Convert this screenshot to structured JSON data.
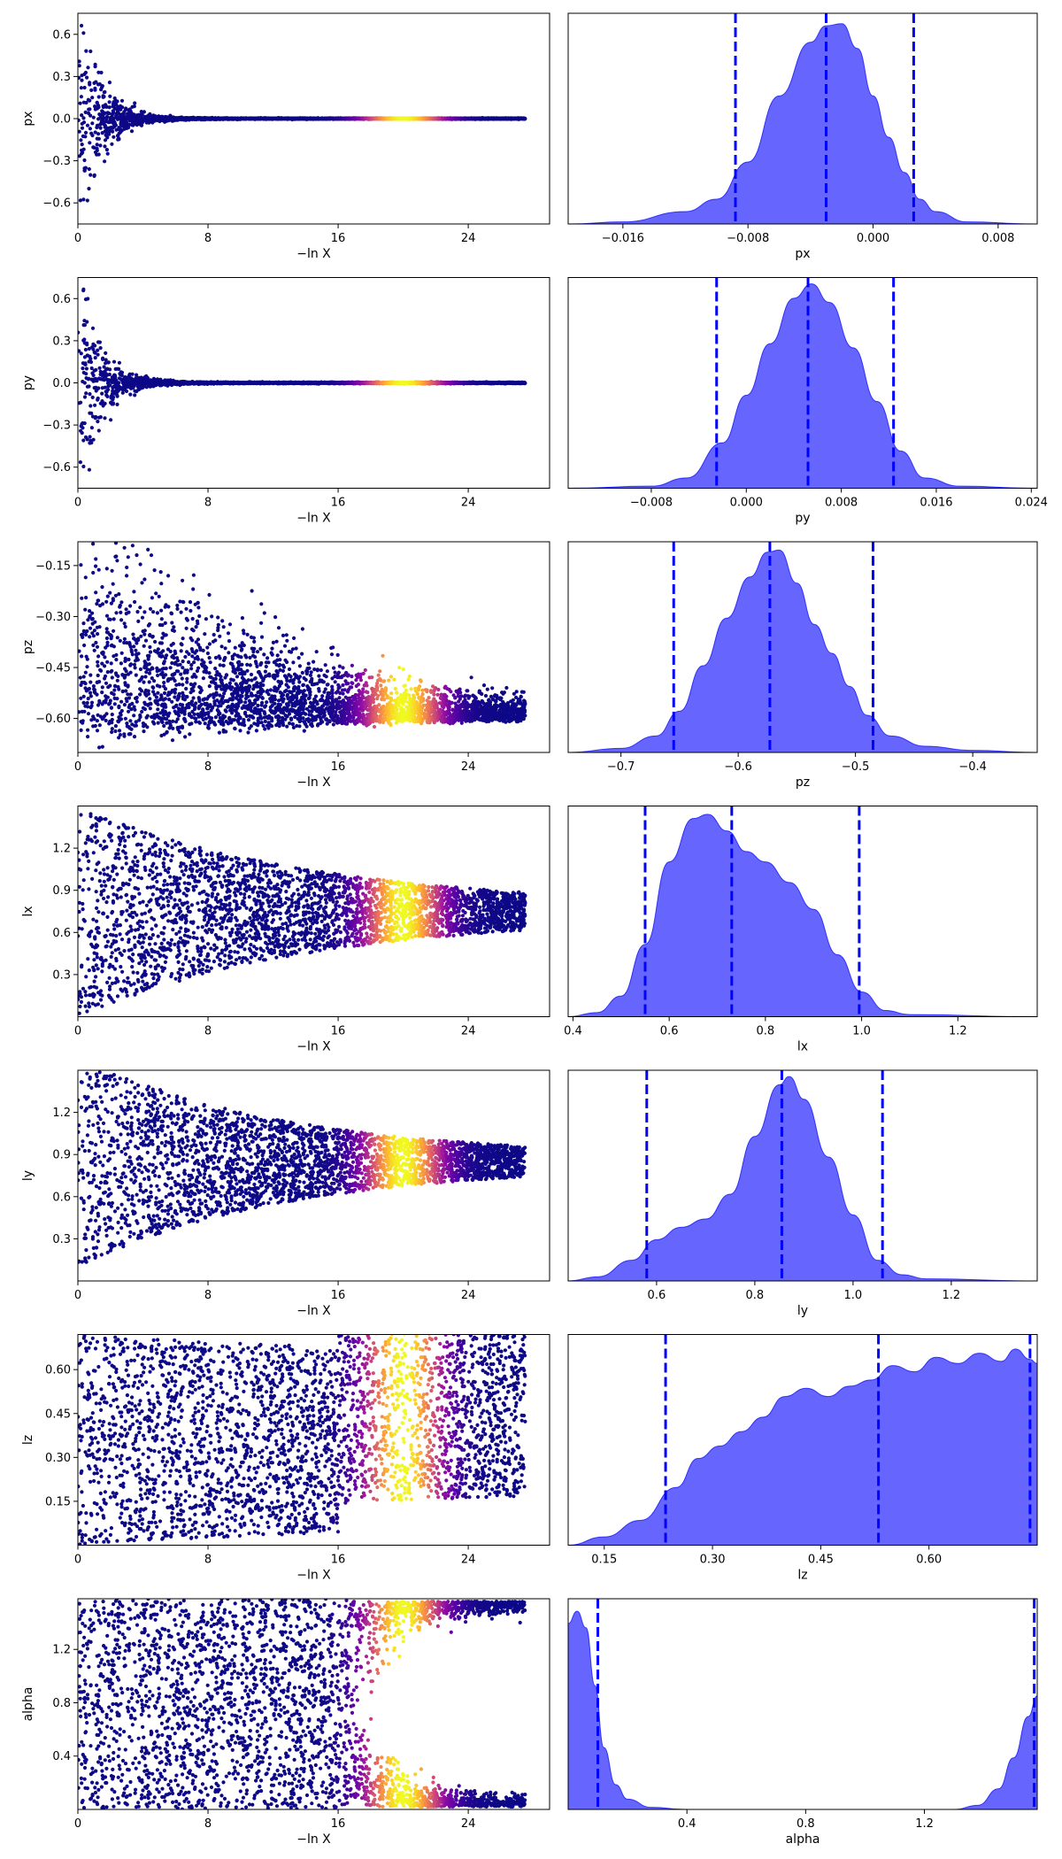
{
  "chart_data": [
    {
      "type": "scatter",
      "name": "trace-px",
      "param": "px",
      "xlabel": "−ln X",
      "ylabel": "px",
      "xlim": [
        0,
        29
      ],
      "ylim": [
        -0.75,
        0.75
      ],
      "xticks": [
        0,
        8,
        16,
        24
      ],
      "yticks": [
        -0.6,
        -0.3,
        0.0,
        0.3,
        0.6
      ],
      "xtick_labels": [
        "0",
        "8",
        "16",
        "24"
      ],
      "ytick_labels": [
        "−0.6",
        "−0.3",
        "0.0",
        "0.3",
        "0.6"
      ],
      "shape": "funnel",
      "center": 0.0,
      "spread_start": 0.75,
      "spread_end": 0.003,
      "decay": 0.75,
      "colormap": "plasma",
      "color_peak_x": 20.0
    },
    {
      "type": "area",
      "name": "posterior-px",
      "param": "px",
      "xlabel": "px",
      "xlim": [
        -0.0195,
        0.0105
      ],
      "xticks": [
        -0.016,
        -0.008,
        0.0,
        0.008
      ],
      "xtick_labels": [
        "−0.016",
        "−0.008",
        "0.000",
        "0.008"
      ],
      "quantiles": [
        -0.0088,
        -0.003,
        0.0026
      ],
      "density": [
        [
          -0.0195,
          0
        ],
        [
          -0.016,
          0.01
        ],
        [
          -0.012,
          0.06
        ],
        [
          -0.01,
          0.12
        ],
        [
          -0.008,
          0.3
        ],
        [
          -0.006,
          0.62
        ],
        [
          -0.004,
          0.88
        ],
        [
          -0.003,
          0.96
        ],
        [
          -0.002,
          0.97
        ],
        [
          -0.001,
          0.85
        ],
        [
          0.0,
          0.62
        ],
        [
          0.001,
          0.42
        ],
        [
          0.002,
          0.25
        ],
        [
          0.003,
          0.12
        ],
        [
          0.004,
          0.06
        ],
        [
          0.006,
          0.01
        ],
        [
          0.0105,
          0
        ]
      ],
      "fill_color": "#6666ff",
      "line_color": "#0000ff"
    },
    {
      "type": "scatter",
      "name": "trace-py",
      "param": "py",
      "xlabel": "−ln X",
      "ylabel": "py",
      "xlim": [
        0,
        29
      ],
      "ylim": [
        -0.75,
        0.75
      ],
      "xticks": [
        0,
        8,
        16,
        24
      ],
      "yticks": [
        -0.6,
        -0.3,
        0.0,
        0.3,
        0.6
      ],
      "xtick_labels": [
        "0",
        "8",
        "16",
        "24"
      ],
      "ytick_labels": [
        "−0.6",
        "−0.3",
        "0.0",
        "0.3",
        "0.6"
      ],
      "shape": "funnel",
      "center": 0.0,
      "spread_start": 0.75,
      "spread_end": 0.004,
      "decay": 0.75,
      "colormap": "plasma",
      "color_peak_x": 20.0
    },
    {
      "type": "area",
      "name": "posterior-py",
      "param": "py",
      "xlabel": "py",
      "xlim": [
        -0.015,
        0.0245
      ],
      "xticks": [
        -0.008,
        0.0,
        0.008,
        0.016,
        0.024
      ],
      "xtick_labels": [
        "−0.008",
        "0.000",
        "0.008",
        "0.016",
        "0.024"
      ],
      "quantiles": [
        -0.0025,
        0.0052,
        0.0124
      ],
      "density": [
        [
          -0.015,
          0
        ],
        [
          -0.008,
          0.01
        ],
        [
          -0.005,
          0.05
        ],
        [
          -0.002,
          0.22
        ],
        [
          0.0,
          0.45
        ],
        [
          0.002,
          0.7
        ],
        [
          0.004,
          0.92
        ],
        [
          0.0055,
          0.99
        ],
        [
          0.007,
          0.9
        ],
        [
          0.009,
          0.68
        ],
        [
          0.011,
          0.42
        ],
        [
          0.013,
          0.18
        ],
        [
          0.015,
          0.05
        ],
        [
          0.018,
          0.01
        ],
        [
          0.0245,
          0
        ]
      ],
      "fill_color": "#6666ff",
      "line_color": "#0000ff"
    },
    {
      "type": "scatter",
      "name": "trace-pz",
      "param": "pz",
      "xlabel": "−ln X",
      "ylabel": "pz",
      "xlim": [
        0,
        29
      ],
      "ylim": [
        -0.7,
        -0.08
      ],
      "xticks": [
        0,
        8,
        16,
        24
      ],
      "yticks": [
        -0.6,
        -0.45,
        -0.3,
        -0.15
      ],
      "xtick_labels": [
        "0",
        "8",
        "16",
        "24"
      ],
      "ytick_labels": [
        "−0.60",
        "−0.45",
        "−0.30",
        "−0.15"
      ],
      "shape": "wedge",
      "center": -0.6,
      "spread_start": 0.5,
      "spread_end": 0.02,
      "decay": 0.1,
      "colormap": "plasma",
      "color_peak_x": 20.0
    },
    {
      "type": "area",
      "name": "posterior-pz",
      "param": "pz",
      "xlabel": "pz",
      "xlim": [
        -0.745,
        -0.345
      ],
      "xticks": [
        -0.7,
        -0.6,
        -0.5,
        -0.4
      ],
      "xtick_labels": [
        "−0.7",
        "−0.6",
        "−0.5",
        "−0.4"
      ],
      "quantiles": [
        -0.655,
        -0.573,
        -0.485
      ],
      "density": [
        [
          -0.745,
          0
        ],
        [
          -0.7,
          0.02
        ],
        [
          -0.67,
          0.08
        ],
        [
          -0.65,
          0.2
        ],
        [
          -0.63,
          0.42
        ],
        [
          -0.61,
          0.65
        ],
        [
          -0.59,
          0.85
        ],
        [
          -0.575,
          0.97
        ],
        [
          -0.565,
          0.98
        ],
        [
          -0.55,
          0.82
        ],
        [
          -0.535,
          0.62
        ],
        [
          -0.52,
          0.48
        ],
        [
          -0.505,
          0.32
        ],
        [
          -0.49,
          0.18
        ],
        [
          -0.47,
          0.08
        ],
        [
          -0.44,
          0.03
        ],
        [
          -0.4,
          0.01
        ],
        [
          -0.345,
          0
        ]
      ],
      "fill_color": "#6666ff",
      "line_color": "#0000ff"
    },
    {
      "type": "scatter",
      "name": "trace-lx",
      "param": "lx",
      "xlabel": "−ln X",
      "ylabel": "lx",
      "xlim": [
        0,
        29
      ],
      "ylim": [
        0.0,
        1.5
      ],
      "xticks": [
        0,
        8,
        16,
        24
      ],
      "yticks": [
        0.3,
        0.6,
        0.9,
        1.2
      ],
      "xtick_labels": [
        "0",
        "8",
        "16",
        "24"
      ],
      "ytick_labels": [
        "0.3",
        "0.6",
        "0.9",
        "1.2"
      ],
      "shape": "cone",
      "center": 0.75,
      "spread_start": 0.75,
      "spread_end": 0.03,
      "decay": 0.07,
      "colormap": "plasma",
      "color_peak_x": 20.0
    },
    {
      "type": "area",
      "name": "posterior-lx",
      "param": "lx",
      "xlabel": "lx",
      "xlim": [
        0.39,
        1.365
      ],
      "xticks": [
        0.4,
        0.6,
        0.8,
        1.0,
        1.2
      ],
      "xtick_labels": [
        "0.4",
        "0.6",
        "0.8",
        "1.0",
        "1.2"
      ],
      "quantiles": [
        0.55,
        0.73,
        0.995
      ],
      "density": [
        [
          0.39,
          0
        ],
        [
          0.45,
          0.02
        ],
        [
          0.5,
          0.1
        ],
        [
          0.55,
          0.35
        ],
        [
          0.6,
          0.75
        ],
        [
          0.65,
          0.96
        ],
        [
          0.68,
          0.98
        ],
        [
          0.72,
          0.9
        ],
        [
          0.76,
          0.8
        ],
        [
          0.8,
          0.75
        ],
        [
          0.85,
          0.65
        ],
        [
          0.9,
          0.52
        ],
        [
          0.95,
          0.3
        ],
        [
          1.0,
          0.12
        ],
        [
          1.05,
          0.03
        ],
        [
          1.1,
          0.01
        ],
        [
          1.365,
          0
        ]
      ],
      "fill_color": "#6666ff",
      "line_color": "#0000ff"
    },
    {
      "type": "scatter",
      "name": "trace-ly",
      "param": "ly",
      "xlabel": "−ln X",
      "ylabel": "ly",
      "xlim": [
        0,
        29
      ],
      "ylim": [
        0.0,
        1.5
      ],
      "xticks": [
        0,
        8,
        16,
        24
      ],
      "yticks": [
        0.3,
        0.6,
        0.9,
        1.2
      ],
      "xtick_labels": [
        "0",
        "8",
        "16",
        "24"
      ],
      "ytick_labels": [
        "0.3",
        "0.6",
        "0.9",
        "1.2"
      ],
      "shape": "cone",
      "center": 0.85,
      "spread_start": 0.75,
      "spread_end": 0.03,
      "decay": 0.08,
      "colormap": "plasma",
      "color_peak_x": 20.0
    },
    {
      "type": "area",
      "name": "posterior-ly",
      "param": "ly",
      "xlabel": "ly",
      "xlim": [
        0.42,
        1.375
      ],
      "xticks": [
        0.6,
        0.8,
        1.0,
        1.2
      ],
      "xtick_labels": [
        "0.6",
        "0.8",
        "1.0",
        "1.2"
      ],
      "quantiles": [
        0.58,
        0.855,
        1.06
      ],
      "density": [
        [
          0.42,
          0
        ],
        [
          0.48,
          0.02
        ],
        [
          0.55,
          0.1
        ],
        [
          0.6,
          0.2
        ],
        [
          0.65,
          0.26
        ],
        [
          0.7,
          0.3
        ],
        [
          0.75,
          0.42
        ],
        [
          0.8,
          0.7
        ],
        [
          0.85,
          0.95
        ],
        [
          0.87,
          0.99
        ],
        [
          0.9,
          0.88
        ],
        [
          0.95,
          0.6
        ],
        [
          1.0,
          0.32
        ],
        [
          1.05,
          0.1
        ],
        [
          1.1,
          0.03
        ],
        [
          1.15,
          0.01
        ],
        [
          1.375,
          0
        ]
      ],
      "fill_color": "#6666ff",
      "line_color": "#0000ff"
    },
    {
      "type": "scatter",
      "name": "trace-lz",
      "param": "lz",
      "xlabel": "−ln X",
      "ylabel": "lz",
      "xlim": [
        0,
        29
      ],
      "ylim": [
        0.0,
        0.72
      ],
      "xticks": [
        0,
        8,
        16,
        24
      ],
      "yticks": [
        0.15,
        0.3,
        0.45,
        0.6
      ],
      "xtick_labels": [
        "0",
        "8",
        "16",
        "24"
      ],
      "ytick_labels": [
        "0.15",
        "0.30",
        "0.45",
        "0.60"
      ],
      "shape": "upper",
      "center": 0.36,
      "spread_start": 0.36,
      "spread_end": 0.2,
      "decay": 0.02,
      "colormap": "plasma",
      "color_peak_x": 20.0
    },
    {
      "type": "area",
      "name": "posterior-lz",
      "param": "lz",
      "xlabel": "lz",
      "xlim": [
        0.1,
        0.75
      ],
      "xticks": [
        0.15,
        0.3,
        0.45,
        0.6
      ],
      "xtick_labels": [
        "0.15",
        "0.30",
        "0.45",
        "0.60"
      ],
      "quantiles": [
        0.235,
        0.53,
        0.74
      ],
      "density": [
        [
          0.1,
          0
        ],
        [
          0.15,
          0.04
        ],
        [
          0.2,
          0.12
        ],
        [
          0.25,
          0.28
        ],
        [
          0.28,
          0.42
        ],
        [
          0.31,
          0.48
        ],
        [
          0.34,
          0.55
        ],
        [
          0.37,
          0.62
        ],
        [
          0.4,
          0.72
        ],
        [
          0.43,
          0.76
        ],
        [
          0.46,
          0.72
        ],
        [
          0.49,
          0.77
        ],
        [
          0.52,
          0.8
        ],
        [
          0.55,
          0.87
        ],
        [
          0.58,
          0.84
        ],
        [
          0.61,
          0.91
        ],
        [
          0.64,
          0.88
        ],
        [
          0.67,
          0.93
        ],
        [
          0.7,
          0.89
        ],
        [
          0.72,
          0.95
        ],
        [
          0.74,
          0.9
        ],
        [
          0.75,
          0.88
        ]
      ],
      "fill_color": "#6666ff",
      "line_color": "#0000ff"
    },
    {
      "type": "scatter",
      "name": "trace-alpha",
      "param": "alpha",
      "xlabel": "−ln X",
      "ylabel": "alpha",
      "xlim": [
        0,
        29
      ],
      "ylim": [
        0.0,
        1.58
      ],
      "xticks": [
        0,
        8,
        16,
        24
      ],
      "yticks": [
        0.4,
        0.8,
        1.2
      ],
      "xtick_labels": [
        "0",
        "8",
        "16",
        "24"
      ],
      "ytick_labels": [
        "0.4",
        "0.8",
        "1.2"
      ],
      "shape": "bimodal",
      "center": 0.79,
      "spread_start": 0.79,
      "spread_end": 0.02,
      "decay": 0.25,
      "colormap": "plasma",
      "color_peak_x": 20.0
    },
    {
      "type": "area",
      "name": "posterior-alpha",
      "param": "alpha",
      "xlabel": "alpha",
      "xlim": [
        0.0,
        1.58
      ],
      "xticks": [
        0.4,
        0.8,
        1.2
      ],
      "xtick_labels": [
        "0.4",
        "0.8",
        "1.2"
      ],
      "quantiles": [
        0.1,
        1.57
      ],
      "density": [
        [
          0.0,
          0.9
        ],
        [
          0.03,
          0.96
        ],
        [
          0.06,
          0.88
        ],
        [
          0.09,
          0.6
        ],
        [
          0.12,
          0.3
        ],
        [
          0.16,
          0.12
        ],
        [
          0.2,
          0.05
        ],
        [
          0.28,
          0.01
        ],
        [
          0.4,
          0
        ],
        [
          1.3,
          0
        ],
        [
          1.38,
          0.02
        ],
        [
          1.45,
          0.1
        ],
        [
          1.5,
          0.25
        ],
        [
          1.55,
          0.45
        ],
        [
          1.58,
          0.55
        ]
      ],
      "fill_color": "#6666ff",
      "line_color": "#0000ff"
    }
  ]
}
